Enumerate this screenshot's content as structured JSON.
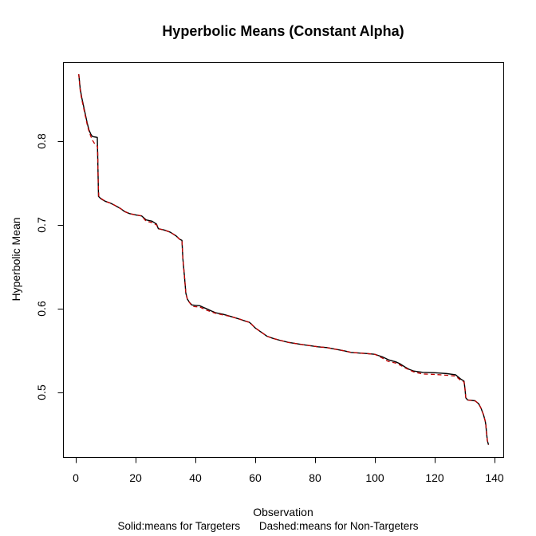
{
  "title": "Hyperbolic Means (Constant Alpha)",
  "x_axis": {
    "label": "Observation",
    "ticks": [
      "0",
      "20",
      "40",
      "60",
      "80",
      "100",
      "120",
      "140"
    ],
    "tick_values": [
      0,
      20,
      40,
      60,
      80,
      100,
      120,
      140
    ]
  },
  "y_axis": {
    "label": "Hyperbolic Mean",
    "ticks": [
      "0.5",
      "0.6",
      "0.7",
      "0.8"
    ],
    "tick_values": [
      0.5,
      0.6,
      0.7,
      0.8
    ]
  },
  "legend": {
    "solid_label": "Solid:means for Targeters",
    "dashed_label": "Dashed:means for Non-Targeters"
  },
  "colors": {
    "targeters_line": "#000000",
    "non_targeters_line": "#c00000",
    "axis": "#000000",
    "background": "#ffffff"
  },
  "chart_data": {
    "type": "line",
    "title": "Hyperbolic Means (Constant Alpha)",
    "xlabel": "Observation",
    "ylabel": "Hyperbolic Mean",
    "xlim": [
      0,
      140
    ],
    "ylim": [
      0.423,
      0.894
    ],
    "grid": false,
    "legend_position": "bottom-margin-text",
    "note": "Solid:means for Targeters    Dashed:means for Non-Targeters",
    "series": [
      {
        "name": "Targeters",
        "style": "solid",
        "color": "#000000",
        "points": [
          [
            1,
            0.88
          ],
          [
            1.5,
            0.862
          ],
          [
            2,
            0.852
          ],
          [
            2.6,
            0.842
          ],
          [
            3.2,
            0.832
          ],
          [
            3.8,
            0.822
          ],
          [
            4.4,
            0.8135
          ],
          [
            5,
            0.8085
          ],
          [
            5.6,
            0.8055
          ],
          [
            6.4,
            0.805
          ],
          [
            7.2,
            0.8045
          ],
          [
            7.4,
            0.77
          ],
          [
            7.6,
            0.734
          ],
          [
            8.5,
            0.731
          ],
          [
            10,
            0.728
          ],
          [
            11.5,
            0.7262
          ],
          [
            13,
            0.7235
          ],
          [
            15,
            0.7195
          ],
          [
            16.3,
            0.716
          ],
          [
            18,
            0.7135
          ],
          [
            20,
            0.712
          ],
          [
            22,
            0.7108
          ],
          [
            23.5,
            0.706
          ],
          [
            25.5,
            0.7045
          ],
          [
            27,
            0.701
          ],
          [
            27.6,
            0.6955
          ],
          [
            29.5,
            0.694
          ],
          [
            31.5,
            0.6915
          ],
          [
            33.5,
            0.687
          ],
          [
            34.7,
            0.683
          ],
          [
            35.5,
            0.6815
          ],
          [
            35.8,
            0.66
          ],
          [
            36.3,
            0.64
          ],
          [
            36.8,
            0.6185
          ],
          [
            37.3,
            0.6115
          ],
          [
            38,
            0.6075
          ],
          [
            38.8,
            0.6045
          ],
          [
            40,
            0.604
          ],
          [
            41.5,
            0.6035
          ],
          [
            43,
            0.601
          ],
          [
            44,
            0.5995
          ],
          [
            45.5,
            0.597
          ],
          [
            46.7,
            0.5952
          ],
          [
            49.3,
            0.5933
          ],
          [
            52,
            0.5905
          ],
          [
            54.7,
            0.5876
          ],
          [
            57,
            0.5848
          ],
          [
            58,
            0.5838
          ],
          [
            58.6,
            0.582
          ],
          [
            60,
            0.577
          ],
          [
            62,
            0.572
          ],
          [
            64,
            0.567
          ],
          [
            66,
            0.5645
          ],
          [
            68,
            0.5625
          ],
          [
            71,
            0.5598
          ],
          [
            76,
            0.557
          ],
          [
            81,
            0.5545
          ],
          [
            84,
            0.5535
          ],
          [
            87,
            0.5515
          ],
          [
            90,
            0.5495
          ],
          [
            92,
            0.5478
          ],
          [
            95,
            0.547
          ],
          [
            97,
            0.5465
          ],
          [
            100,
            0.5455
          ],
          [
            102.5,
            0.5425
          ],
          [
            104.5,
            0.539
          ],
          [
            107,
            0.5365
          ],
          [
            108.5,
            0.534
          ],
          [
            110,
            0.5305
          ],
          [
            111.5,
            0.5275
          ],
          [
            113,
            0.5255
          ],
          [
            116,
            0.524
          ],
          [
            120,
            0.5235
          ],
          [
            124,
            0.5225
          ],
          [
            127,
            0.521
          ],
          [
            128.5,
            0.5165
          ],
          [
            129.8,
            0.5135
          ],
          [
            130.1,
            0.505
          ],
          [
            130.4,
            0.4935
          ],
          [
            131,
            0.491
          ],
          [
            133.5,
            0.49
          ],
          [
            134.7,
            0.4865
          ],
          [
            135.5,
            0.481
          ],
          [
            136.3,
            0.4735
          ],
          [
            136.9,
            0.4655
          ],
          [
            137.1,
            0.461
          ],
          [
            137.35,
            0.451
          ],
          [
            137.6,
            0.4425
          ],
          [
            138,
            0.4375
          ]
        ]
      },
      {
        "name": "Non-Targeters",
        "style": "dashed",
        "color": "#c00000",
        "points": [
          [
            1,
            0.88
          ],
          [
            1.5,
            0.86
          ],
          [
            2,
            0.85
          ],
          [
            2.6,
            0.84
          ],
          [
            3.2,
            0.83
          ],
          [
            3.8,
            0.82
          ],
          [
            4.4,
            0.812
          ],
          [
            5,
            0.806
          ],
          [
            5.6,
            0.801
          ],
          [
            6.3,
            0.797
          ],
          [
            7,
            0.7945
          ],
          [
            7.3,
            0.794
          ],
          [
            7.5,
            0.75
          ],
          [
            7.7,
            0.734
          ],
          [
            8.5,
            0.7315
          ],
          [
            10,
            0.728
          ],
          [
            11.5,
            0.7262
          ],
          [
            13,
            0.7235
          ],
          [
            15,
            0.7195
          ],
          [
            16.3,
            0.716
          ],
          [
            18,
            0.7135
          ],
          [
            20,
            0.712
          ],
          [
            22,
            0.7108
          ],
          [
            23.5,
            0.7045
          ],
          [
            25.5,
            0.7028
          ],
          [
            27,
            0.7
          ],
          [
            27.6,
            0.6955
          ],
          [
            29.5,
            0.694
          ],
          [
            31.5,
            0.6915
          ],
          [
            33.5,
            0.687
          ],
          [
            34.7,
            0.683
          ],
          [
            35.5,
            0.6815
          ],
          [
            35.8,
            0.66
          ],
          [
            36.3,
            0.64
          ],
          [
            36.8,
            0.6185
          ],
          [
            37.3,
            0.6115
          ],
          [
            38,
            0.6075
          ],
          [
            38.8,
            0.6035
          ],
          [
            39.5,
            0.6025
          ],
          [
            41.5,
            0.602
          ],
          [
            43.5,
            0.5985
          ],
          [
            45.5,
            0.596
          ],
          [
            46.7,
            0.5945
          ],
          [
            49.3,
            0.5925
          ],
          [
            52,
            0.5905
          ],
          [
            54.7,
            0.5876
          ],
          [
            57,
            0.5848
          ],
          [
            58,
            0.5838
          ],
          [
            58.6,
            0.582
          ],
          [
            60,
            0.577
          ],
          [
            62,
            0.572
          ],
          [
            64,
            0.567
          ],
          [
            66,
            0.5645
          ],
          [
            68,
            0.5625
          ],
          [
            71,
            0.5598
          ],
          [
            76,
            0.557
          ],
          [
            81,
            0.5545
          ],
          [
            84,
            0.5535
          ],
          [
            87,
            0.5515
          ],
          [
            90,
            0.5495
          ],
          [
            92,
            0.5478
          ],
          [
            95,
            0.547
          ],
          [
            97,
            0.5465
          ],
          [
            100,
            0.5455
          ],
          [
            102.5,
            0.541
          ],
          [
            104.5,
            0.537
          ],
          [
            107,
            0.535
          ],
          [
            108.5,
            0.5325
          ],
          [
            110,
            0.5295
          ],
          [
            111.5,
            0.527
          ],
          [
            113,
            0.5245
          ],
          [
            116,
            0.522
          ],
          [
            120,
            0.5215
          ],
          [
            124,
            0.5205
          ],
          [
            127,
            0.5195
          ],
          [
            128.5,
            0.515
          ],
          [
            129.8,
            0.5125
          ],
          [
            130.1,
            0.505
          ],
          [
            130.4,
            0.4935
          ],
          [
            131,
            0.491
          ],
          [
            133.5,
            0.49
          ],
          [
            134.7,
            0.4865
          ],
          [
            135.5,
            0.481
          ],
          [
            136.3,
            0.4735
          ],
          [
            136.9,
            0.4655
          ],
          [
            137.1,
            0.461
          ],
          [
            137.35,
            0.451
          ],
          [
            137.6,
            0.4425
          ],
          [
            138,
            0.4375
          ]
        ]
      }
    ]
  }
}
